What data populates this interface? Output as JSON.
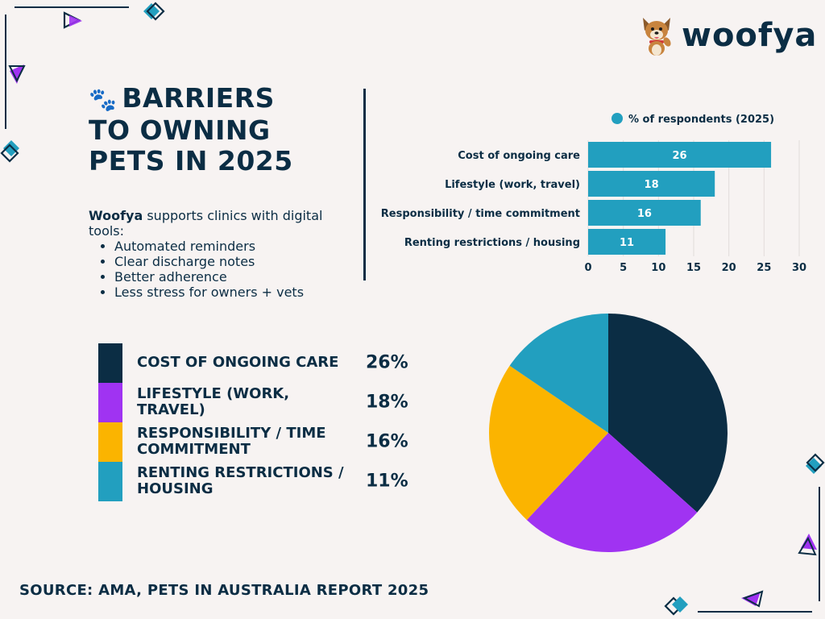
{
  "brand": {
    "name": "woofya"
  },
  "title": "BARRIERS TO OWNING PETS IN 2025",
  "description": {
    "brand": "Woofya",
    "intro": " supports clinics with digital tools:",
    "bullets": [
      "Automated reminders",
      "Clear discharge notes",
      "Better adherence",
      "Less stress for owners + vets"
    ]
  },
  "legend": [
    {
      "label": "COST OF ONGOING CARE",
      "value": "26%"
    },
    {
      "label": "LIFESTYLE (WORK, TRAVEL)",
      "value": "18%"
    },
    {
      "label": "RESPONSIBILITY / TIME COMMITMENT",
      "value": "16%"
    },
    {
      "label": "RENTING RESTRICTIONS / HOUSING",
      "value": "11%"
    }
  ],
  "source": "SOURCE: AMA, PETS IN AUSTRALIA REPORT 2025",
  "colors": {
    "navy": "#0b2d44",
    "purple": "#a033f2",
    "yellow": "#fbb400",
    "teal": "#229fbf",
    "background": "#f7f3f2"
  },
  "chart_data": [
    {
      "type": "bar",
      "orientation": "horizontal",
      "legend_label": "% of respondents (2025)",
      "categories": [
        "Cost of ongoing care",
        "Lifestyle (work, travel)",
        "Responsibility / time commitment",
        "Renting restrictions / housing"
      ],
      "values": [
        26,
        18,
        16,
        11
      ],
      "xlim": [
        0,
        30
      ],
      "xticks": [
        0,
        5,
        10,
        15,
        20,
        25,
        30
      ],
      "grid": true,
      "data_labels": true
    },
    {
      "type": "pie",
      "categories": [
        "Cost of ongoing care",
        "Lifestyle (work, travel)",
        "Responsibility / time commitment",
        "Renting restrictions / housing"
      ],
      "values": [
        26,
        18,
        16,
        11
      ],
      "colors": [
        "#0b2d44",
        "#a033f2",
        "#fbb400",
        "#229fbf"
      ]
    }
  ]
}
